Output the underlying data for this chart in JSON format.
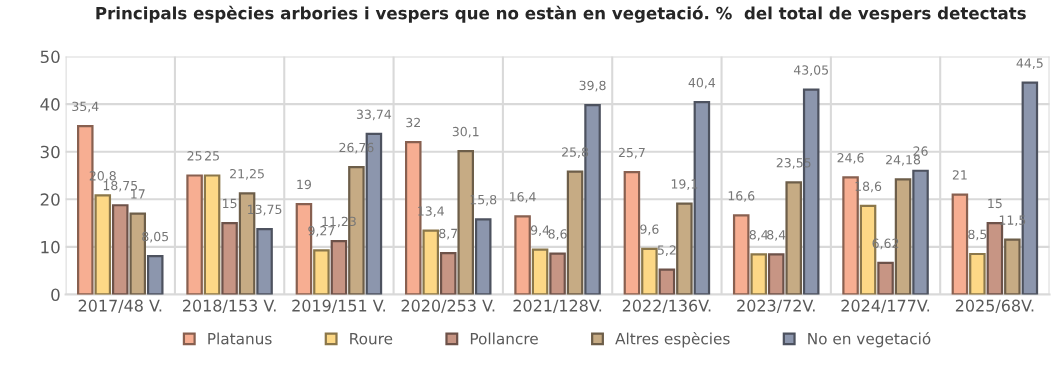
{
  "chart_data": {
    "type": "bar",
    "title": "Principals espècies arbories i vespers que no estàn en vegetació. %  del total de vespers detectats",
    "categories": [
      "2017/48 V.",
      "2018/153 V.",
      "2019/151 V.",
      "2020/253 V.",
      "2021/128V.",
      "2022/136V.",
      "2023/72V.",
      "2024/177V.",
      "2025/68V."
    ],
    "series": [
      {
        "name": "Platanus",
        "color": "#f7ae92",
        "values": [
          35.4,
          25,
          19,
          32,
          16.4,
          25.7,
          16.6,
          24.6,
          21
        ],
        "value_labels": [
          "35,4",
          "25",
          "19",
          "32",
          "16,4",
          "25,7",
          "16,6",
          "24,6",
          "21"
        ]
      },
      {
        "name": "Roure",
        "color": "#fdd886",
        "values": [
          20.8,
          25,
          9.27,
          13.4,
          9.4,
          9.6,
          8.4,
          18.6,
          8.5
        ],
        "value_labels": [
          "20,8",
          "25",
          "9,27",
          "13,4",
          "9,4",
          "9,6",
          "8,4",
          "18,6",
          "8,5"
        ]
      },
      {
        "name": "Pollancre",
        "color": "#c79584",
        "values": [
          18.75,
          15,
          11.23,
          8.7,
          8.6,
          5.2,
          8.4,
          6.62,
          15
        ],
        "value_labels": [
          "18,75",
          "15",
          "11,23",
          "8,7",
          "8,6",
          "5,2",
          "8,4",
          "6,62",
          "15"
        ]
      },
      {
        "name": "Altres espècies",
        "color": "#c6ab84",
        "values": [
          17,
          21.25,
          26.76,
          30.1,
          25.8,
          19.1,
          23.55,
          24.18,
          11.5
        ],
        "value_labels": [
          "17",
          "21,25",
          "26,76",
          "30,1",
          "25,8",
          "19,1",
          "23,55",
          "24,18",
          "11,5"
        ]
      },
      {
        "name": "No en vegetació",
        "color": "#8c96ad",
        "values": [
          8.05,
          13.75,
          33.74,
          15.8,
          39.8,
          40.4,
          43.05,
          26,
          44.5
        ],
        "value_labels": [
          "8,05",
          "13,75",
          "33,74",
          "15,8",
          "39,8",
          "40,4",
          "43,05",
          "26",
          "44,5"
        ]
      }
    ],
    "ylim": [
      0,
      50
    ],
    "yticks": [
      0,
      10,
      20,
      30,
      40,
      50
    ],
    "grid": true,
    "legend": "bottom"
  }
}
